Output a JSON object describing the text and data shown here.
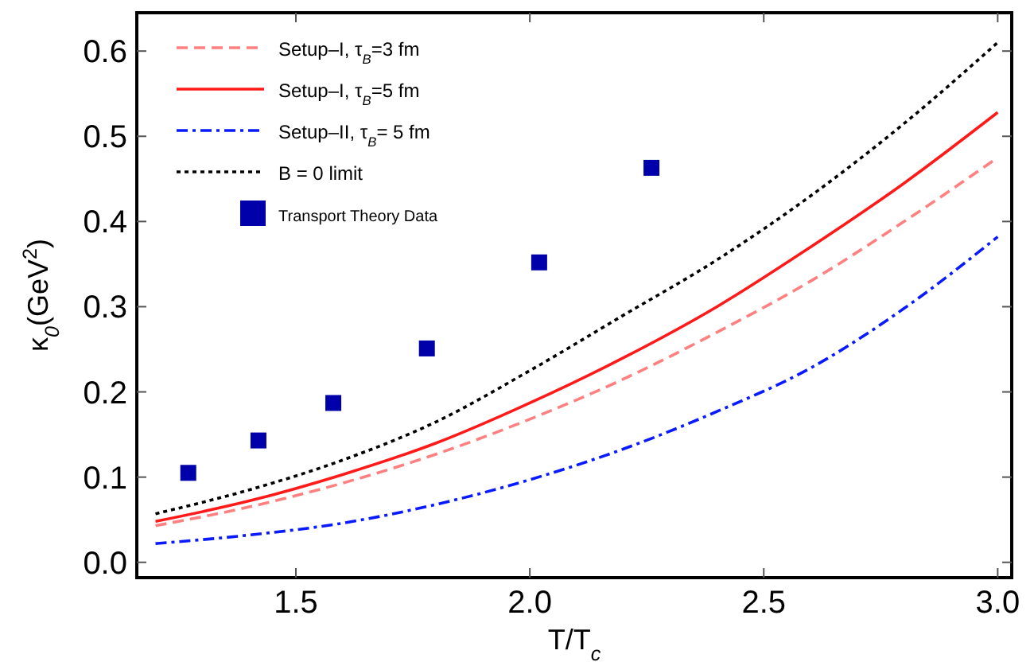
{
  "chart_data": {
    "type": "line",
    "xlabel": "T/T$_{c}$",
    "ylabel": "κ$_{0}$(GeV$^{2}$)",
    "xlim": [
      1.16,
      3.03
    ],
    "ylim": [
      -0.018,
      0.645
    ],
    "xticks": [
      {
        "value": 1.5,
        "label": "1.5"
      },
      {
        "value": 2.0,
        "label": "2.0"
      },
      {
        "value": 2.5,
        "label": "2.5"
      },
      {
        "value": 3.0,
        "label": "3.0"
      }
    ],
    "yticks": [
      {
        "value": 0,
        "label": "0.0"
      },
      {
        "value": 0.1,
        "label": "0.1"
      },
      {
        "value": 0.2,
        "label": "0.2"
      },
      {
        "value": 0.3,
        "label": "0.3"
      },
      {
        "value": 0.4,
        "label": "0.4"
      },
      {
        "value": 0.5,
        "label": "0.5"
      },
      {
        "value": 0.6,
        "label": "0.6"
      }
    ],
    "grid": false,
    "legend": "top left",
    "x": [
      1.2,
      1.4,
      1.6,
      1.8,
      2.0,
      2.2,
      2.4,
      2.6,
      2.8,
      3.0
    ],
    "series": [
      {
        "name": "Setup–I, τ$_{B}$=3 fm",
        "color": "#ff8080",
        "line_style": "dashed",
        "marker": "none",
        "values": [
          0.043,
          0.065,
          0.093,
          0.127,
          0.168,
          0.215,
          0.27,
          0.33,
          0.4,
          0.475
        ]
      },
      {
        "name": "Setup–I, τ$_{B}$=5 fm",
        "color": "#ff1a1a",
        "line_style": "solid",
        "marker": "none",
        "values": [
          0.048,
          0.072,
          0.103,
          0.14,
          0.187,
          0.24,
          0.3,
          0.37,
          0.445,
          0.528
        ]
      },
      {
        "name": "Setup–II, τ$_{B}$= 5 fm",
        "color": "#0a1aff",
        "line_style": "dashdot",
        "marker": "none",
        "values": [
          0.022,
          0.032,
          0.046,
          0.068,
          0.097,
          0.133,
          0.177,
          0.228,
          0.298,
          0.382
        ]
      },
      {
        "name": "B = 0 limit",
        "color": "#000000",
        "line_style": "dotted",
        "marker": "none",
        "values": [
          0.057,
          0.085,
          0.12,
          0.165,
          0.225,
          0.29,
          0.355,
          0.43,
          0.515,
          0.61
        ]
      },
      {
        "name": "Transport Theory Data",
        "type": "scatter",
        "color": "#0000aa",
        "marker": "square",
        "x": [
          1.27,
          1.42,
          1.58,
          1.78,
          2.02,
          2.26
        ],
        "values": [
          0.105,
          0.143,
          0.187,
          0.251,
          0.352,
          0.463
        ]
      }
    ]
  }
}
